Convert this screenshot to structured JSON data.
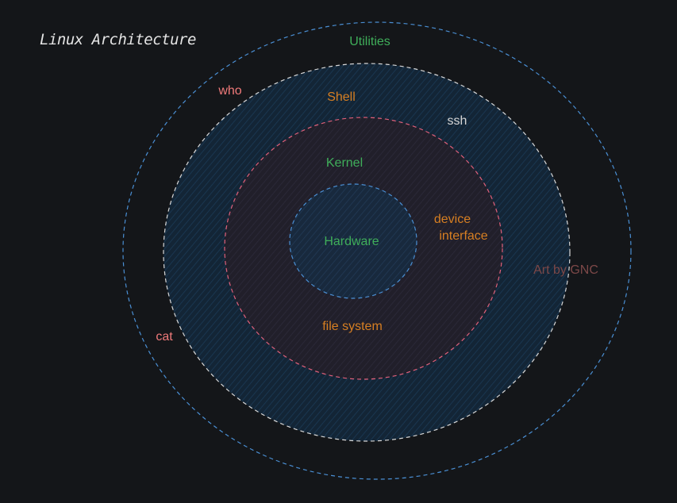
{
  "title": "Linux Architecture",
  "rings": {
    "utilities": "Utilities",
    "shell": "Shell",
    "kernel": "Kernel",
    "hardware": "Hardware"
  },
  "commands": {
    "who": "who",
    "ssh": "ssh",
    "cat": "cat"
  },
  "kernel_parts": {
    "device_line1": "device",
    "device_line2": "interface",
    "file_system": "file system"
  },
  "credit": "Art by GNC",
  "colors": {
    "background": "#141619",
    "blue_dash": "#4a8fd4",
    "white_dash": "#d8d8d8",
    "pink_dash": "#e0607a",
    "shell_fill": "#15283a",
    "kernel_fill": "#23212e",
    "hardware_fill": "#1a2c44",
    "green": "#3fae5a",
    "orange": "#d77f22",
    "pink": "#f07a7a",
    "light": "#d6d6d6",
    "credit": "#7d4848"
  }
}
